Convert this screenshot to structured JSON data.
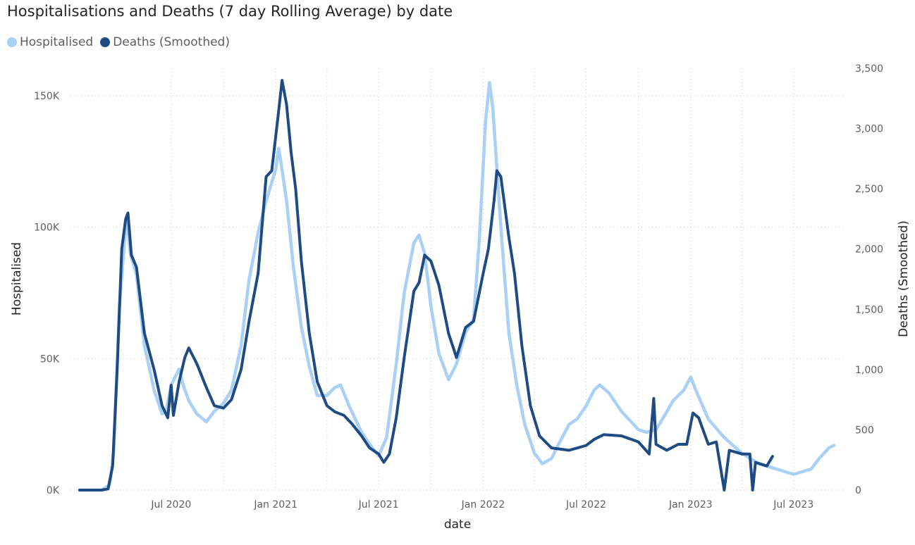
{
  "title": "Hospitalisations and Deaths (7 day Rolling Average) by date",
  "legend": [
    {
      "label": "Hospitalised",
      "color": "#a9d0f5"
    },
    {
      "label": "Deaths (Smoothed)",
      "color": "#1f4b84"
    }
  ],
  "chart_data": {
    "type": "line",
    "title": "Hospitalisations and Deaths (7 day Rolling Average) by date",
    "xlabel": "date",
    "ylabel_left": "Hospitalised",
    "ylabel_right": "Deaths (Smoothed)",
    "x_ticks": [
      "Jul 2020",
      "Jan 2021",
      "Jul 2021",
      "Jan 2022",
      "Jul 2022",
      "Jan 2023",
      "Jul 2023"
    ],
    "y_left_ticks": [
      "0K",
      "50K",
      "100K",
      "150K"
    ],
    "y_right_ticks": [
      "0",
      "500",
      "1,000",
      "1,500",
      "2,000",
      "2,500",
      "3,000",
      "3,500"
    ],
    "y_left_range": [
      0,
      160000
    ],
    "y_right_range": [
      0,
      3500
    ],
    "grid": true,
    "legend_position": "top-left",
    "series": [
      {
        "name": "Hospitalised",
        "axis": "left",
        "color": "#a9d0f5",
        "points": [
          [
            "2020-01-22",
            0
          ],
          [
            "2020-03-01",
            0
          ],
          [
            "2020-03-15",
            2000
          ],
          [
            "2020-03-22",
            15000
          ],
          [
            "2020-04-01",
            70000
          ],
          [
            "2020-04-10",
            95000
          ],
          [
            "2020-04-14",
            104000
          ],
          [
            "2020-04-20",
            90000
          ],
          [
            "2020-05-01",
            82000
          ],
          [
            "2020-05-15",
            55000
          ],
          [
            "2020-06-01",
            38000
          ],
          [
            "2020-06-15",
            29000
          ],
          [
            "2020-06-22",
            30000
          ],
          [
            "2020-07-01",
            40000
          ],
          [
            "2020-07-15",
            46000
          ],
          [
            "2020-07-22",
            40000
          ],
          [
            "2020-08-01",
            34000
          ],
          [
            "2020-08-15",
            29000
          ],
          [
            "2020-09-01",
            26000
          ],
          [
            "2020-09-15",
            30000
          ],
          [
            "2020-10-01",
            33000
          ],
          [
            "2020-10-15",
            38000
          ],
          [
            "2020-11-01",
            55000
          ],
          [
            "2020-11-15",
            80000
          ],
          [
            "2020-12-01",
            98000
          ],
          [
            "2020-12-15",
            110000
          ],
          [
            "2021-01-01",
            122000
          ],
          [
            "2021-01-06",
            130000
          ],
          [
            "2021-01-10",
            125000
          ],
          [
            "2021-01-20",
            110000
          ],
          [
            "2021-02-01",
            85000
          ],
          [
            "2021-02-15",
            62000
          ],
          [
            "2021-03-01",
            47000
          ],
          [
            "2021-03-15",
            36000
          ],
          [
            "2021-04-01",
            36000
          ],
          [
            "2021-04-15",
            39000
          ],
          [
            "2021-04-25",
            40000
          ],
          [
            "2021-05-10",
            32000
          ],
          [
            "2021-06-01",
            22000
          ],
          [
            "2021-06-20",
            16000
          ],
          [
            "2021-07-01",
            13000
          ],
          [
            "2021-07-15",
            20000
          ],
          [
            "2021-08-01",
            48000
          ],
          [
            "2021-08-15",
            75000
          ],
          [
            "2021-09-01",
            94000
          ],
          [
            "2021-09-10",
            97000
          ],
          [
            "2021-09-20",
            90000
          ],
          [
            "2021-10-01",
            70000
          ],
          [
            "2021-10-15",
            52000
          ],
          [
            "2021-11-01",
            42000
          ],
          [
            "2021-11-15",
            48000
          ],
          [
            "2021-12-01",
            60000
          ],
          [
            "2021-12-15",
            65000
          ],
          [
            "2021-12-25",
            95000
          ],
          [
            "2022-01-05",
            140000
          ],
          [
            "2022-01-12",
            155000
          ],
          [
            "2022-01-18",
            145000
          ],
          [
            "2022-02-01",
            100000
          ],
          [
            "2022-02-15",
            60000
          ],
          [
            "2022-03-01",
            40000
          ],
          [
            "2022-03-15",
            25000
          ],
          [
            "2022-04-01",
            14000
          ],
          [
            "2022-04-15",
            10000
          ],
          [
            "2022-05-01",
            12000
          ],
          [
            "2022-05-15",
            18000
          ],
          [
            "2022-06-01",
            25000
          ],
          [
            "2022-06-15",
            27000
          ],
          [
            "2022-07-01",
            32000
          ],
          [
            "2022-07-15",
            38000
          ],
          [
            "2022-07-25",
            40000
          ],
          [
            "2022-08-10",
            37000
          ],
          [
            "2022-09-01",
            30000
          ],
          [
            "2022-10-01",
            23000
          ],
          [
            "2022-10-15",
            22000
          ],
          [
            "2022-11-01",
            23000
          ],
          [
            "2022-11-15",
            28000
          ],
          [
            "2022-12-01",
            34000
          ],
          [
            "2022-12-20",
            38000
          ],
          [
            "2023-01-01",
            43000
          ],
          [
            "2023-01-10",
            38000
          ],
          [
            "2023-02-01",
            27000
          ],
          [
            "2023-03-01",
            20000
          ],
          [
            "2023-04-01",
            14000
          ],
          [
            "2023-05-01",
            10000
          ],
          [
            "2023-06-01",
            8000
          ],
          [
            "2023-07-01",
            6000
          ],
          [
            "2023-08-01",
            8000
          ],
          [
            "2023-08-15",
            12000
          ],
          [
            "2023-09-01",
            16000
          ],
          [
            "2023-09-10",
            17000
          ]
        ]
      },
      {
        "name": "Deaths (Smoothed)",
        "axis": "right",
        "color": "#1f4b84",
        "points": [
          [
            "2020-01-22",
            0
          ],
          [
            "2020-03-01",
            0
          ],
          [
            "2020-03-12",
            10
          ],
          [
            "2020-03-20",
            200
          ],
          [
            "2020-03-28",
            1000
          ],
          [
            "2020-04-05",
            2000
          ],
          [
            "2020-04-12",
            2250
          ],
          [
            "2020-04-16",
            2300
          ],
          [
            "2020-04-22",
            1950
          ],
          [
            "2020-05-01",
            1850
          ],
          [
            "2020-05-15",
            1300
          ],
          [
            "2020-06-01",
            1000
          ],
          [
            "2020-06-15",
            700
          ],
          [
            "2020-06-25",
            600
          ],
          [
            "2020-07-01",
            870
          ],
          [
            "2020-07-05",
            620
          ],
          [
            "2020-07-15",
            900
          ],
          [
            "2020-07-25",
            1100
          ],
          [
            "2020-08-01",
            1180
          ],
          [
            "2020-08-15",
            1050
          ],
          [
            "2020-09-01",
            850
          ],
          [
            "2020-09-15",
            700
          ],
          [
            "2020-10-01",
            680
          ],
          [
            "2020-10-15",
            750
          ],
          [
            "2020-11-01",
            1000
          ],
          [
            "2020-11-15",
            1400
          ],
          [
            "2020-12-01",
            1800
          ],
          [
            "2020-12-15",
            2600
          ],
          [
            "2020-12-25",
            2650
          ],
          [
            "2021-01-05",
            3100
          ],
          [
            "2021-01-12",
            3400
          ],
          [
            "2021-01-20",
            3200
          ],
          [
            "2021-01-28",
            2800
          ],
          [
            "2021-02-05",
            2500
          ],
          [
            "2021-02-15",
            1900
          ],
          [
            "2021-03-01",
            1300
          ],
          [
            "2021-03-15",
            900
          ],
          [
            "2021-04-01",
            700
          ],
          [
            "2021-04-15",
            650
          ],
          [
            "2021-05-01",
            620
          ],
          [
            "2021-05-15",
            550
          ],
          [
            "2021-06-01",
            450
          ],
          [
            "2021-06-15",
            350
          ],
          [
            "2021-07-01",
            300
          ],
          [
            "2021-07-10",
            230
          ],
          [
            "2021-07-20",
            300
          ],
          [
            "2021-08-01",
            600
          ],
          [
            "2021-08-15",
            1100
          ],
          [
            "2021-09-01",
            1650
          ],
          [
            "2021-09-10",
            1720
          ],
          [
            "2021-09-20",
            1950
          ],
          [
            "2021-10-01",
            1900
          ],
          [
            "2021-10-15",
            1700
          ],
          [
            "2021-11-01",
            1300
          ],
          [
            "2021-11-15",
            1100
          ],
          [
            "2021-12-01",
            1350
          ],
          [
            "2021-12-15",
            1400
          ],
          [
            "2022-01-01",
            1800
          ],
          [
            "2022-01-10",
            2000
          ],
          [
            "2022-01-20",
            2400
          ],
          [
            "2022-01-25",
            2650
          ],
          [
            "2022-02-01",
            2600
          ],
          [
            "2022-02-15",
            2100
          ],
          [
            "2022-02-25",
            1800
          ],
          [
            "2022-03-10",
            1200
          ],
          [
            "2022-03-25",
            700
          ],
          [
            "2022-04-10",
            450
          ],
          [
            "2022-05-01",
            350
          ],
          [
            "2022-06-01",
            330
          ],
          [
            "2022-07-01",
            370
          ],
          [
            "2022-07-15",
            420
          ],
          [
            "2022-08-01",
            460
          ],
          [
            "2022-09-01",
            450
          ],
          [
            "2022-10-01",
            400
          ],
          [
            "2022-10-20",
            300
          ],
          [
            "2022-10-28",
            760
          ],
          [
            "2022-11-01",
            380
          ],
          [
            "2022-11-20",
            330
          ],
          [
            "2022-12-10",
            380
          ],
          [
            "2022-12-25",
            380
          ],
          [
            "2023-01-05",
            640
          ],
          [
            "2023-01-15",
            600
          ],
          [
            "2023-02-01",
            380
          ],
          [
            "2023-02-15",
            400
          ],
          [
            "2023-03-01",
            0
          ],
          [
            "2023-03-10",
            330
          ],
          [
            "2023-04-01",
            300
          ],
          [
            "2023-04-15",
            300
          ],
          [
            "2023-04-20",
            0
          ],
          [
            "2023-04-25",
            230
          ],
          [
            "2023-05-15",
            200
          ],
          [
            "2023-05-25",
            280
          ]
        ]
      }
    ]
  }
}
